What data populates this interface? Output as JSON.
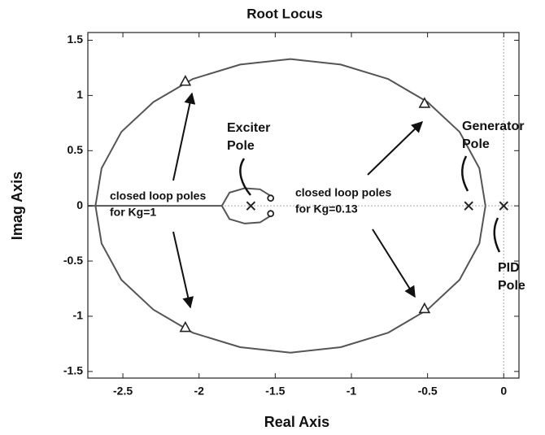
{
  "chart_data": {
    "type": "root-locus",
    "title": "Root Locus",
    "x_label": "Real Axis",
    "y_label": "Imag Axis",
    "xlim": [
      -2.73,
      0.1
    ],
    "ylim": [
      -1.56,
      1.57
    ],
    "xticks": [
      -2.5,
      -2,
      -1.5,
      -1,
      -0.5,
      0
    ],
    "yticks": [
      1.5,
      1,
      0.5,
      0,
      -0.5,
      -1,
      -1.5
    ],
    "grid": false,
    "line_color": "#555555",
    "marker_color": "#222222",
    "locus": [
      {
        "x": [
          -0.12,
          -0.16,
          -0.29,
          -0.5,
          -0.76,
          -1.07,
          -1.4,
          -1.73,
          -2.04,
          -2.3,
          -2.51,
          -2.64,
          -2.68,
          -2.64,
          -2.51,
          -2.3,
          -2.04,
          -1.73,
          -1.4,
          -1.07,
          -0.76,
          -0.5,
          -0.29,
          -0.16,
          -0.12
        ],
        "y": [
          0,
          0.34,
          0.67,
          0.94,
          1.15,
          1.28,
          1.33,
          1.28,
          1.15,
          0.94,
          0.67,
          0.34,
          0,
          -0.34,
          -0.67,
          -0.94,
          -1.15,
          -1.28,
          -1.33,
          -1.28,
          -1.15,
          -0.94,
          -0.67,
          -0.34,
          0
        ]
      },
      {
        "x": [
          -1.53,
          -1.6,
          -1.7,
          -1.8,
          -1.85,
          -1.8,
          -1.7,
          -1.6,
          -1.53
        ],
        "y": [
          0.09,
          0.15,
          0.16,
          0.12,
          0,
          -0.12,
          -0.16,
          -0.15,
          -0.09
        ]
      },
      {
        "x": [
          -2.73,
          -1.85
        ],
        "y": [
          0,
          0
        ]
      }
    ],
    "poles": {
      "x": [
        -1.66,
        -0.23,
        0
      ],
      "y": [
        0,
        0,
        0
      ]
    },
    "zeros": {
      "x": [
        -1.53,
        -1.53
      ],
      "y": [
        0.07,
        -0.07
      ]
    },
    "closed_loop_poles": {
      "x": [
        -2.09,
        -2.09,
        -0.52,
        -0.52
      ],
      "y": [
        1.13,
        -1.1,
        0.93,
        -0.93
      ]
    },
    "annotations": [
      "Exciter",
      "Pole",
      "Generator",
      "Pole",
      "closed loop poles",
      "for Kg=1",
      "closed loop poles",
      "for Kg=0.13",
      "PID",
      "Pole"
    ]
  }
}
